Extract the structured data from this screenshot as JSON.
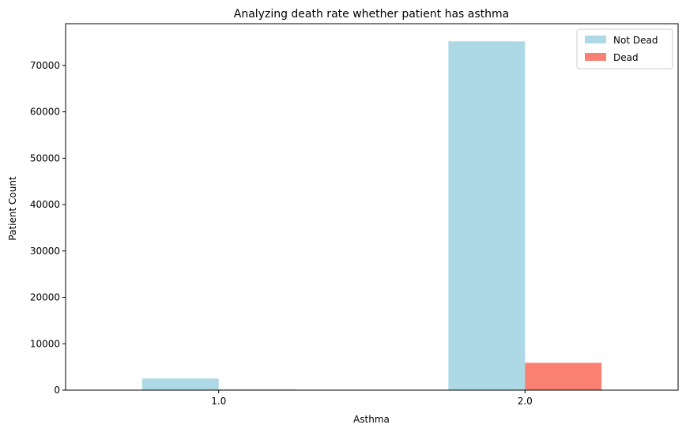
{
  "chart_data": {
    "type": "bar",
    "title": "Analyzing death rate whether patient has asthma",
    "xlabel": "Asthma",
    "ylabel": "Patient Count",
    "categories": [
      "1.0",
      "2.0"
    ],
    "series": [
      {
        "name": "Not Dead",
        "color": "#add8e6",
        "values": [
          2500,
          75200
        ]
      },
      {
        "name": "Dead",
        "color": "#fa8072",
        "values": [
          130,
          5900
        ]
      }
    ],
    "ylim": [
      0,
      79000
    ],
    "yticks": [
      0,
      10000,
      20000,
      30000,
      40000,
      50000,
      60000,
      70000
    ],
    "grid": false,
    "legend_position": "top-right"
  }
}
